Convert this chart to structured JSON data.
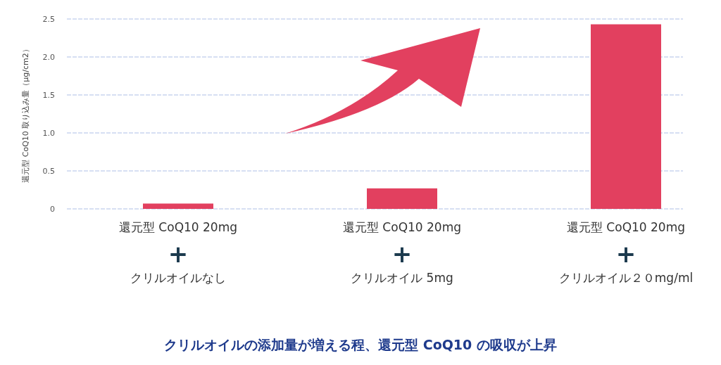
{
  "chart_data": {
    "type": "bar",
    "title": "クリルオイルの添加量が増える程、還元型 CoQ10 の吸収が上昇",
    "ylabel": "還元型 CoQ10 取り込み量（μg/cm2）",
    "categories": [
      "還元型 CoQ10 20mg\n+\nクリルオイルなし",
      "還元型 CoQ10 20mg\n+\nクリルオイル 5mg",
      "還元型 CoQ10 20mg\n+\nクリルオイル２０mg/ml"
    ],
    "values": [
      0.07,
      0.27,
      2.43
    ],
    "color": "#e2405f",
    "ylim": [
      0,
      2.5
    ],
    "yticks": [
      0,
      0.5,
      {
        "value": 1,
        "label": "1.0"
      },
      1.5,
      {
        "value": 2,
        "label": "2.0"
      },
      2.5
    ],
    "grid": "y"
  }
}
